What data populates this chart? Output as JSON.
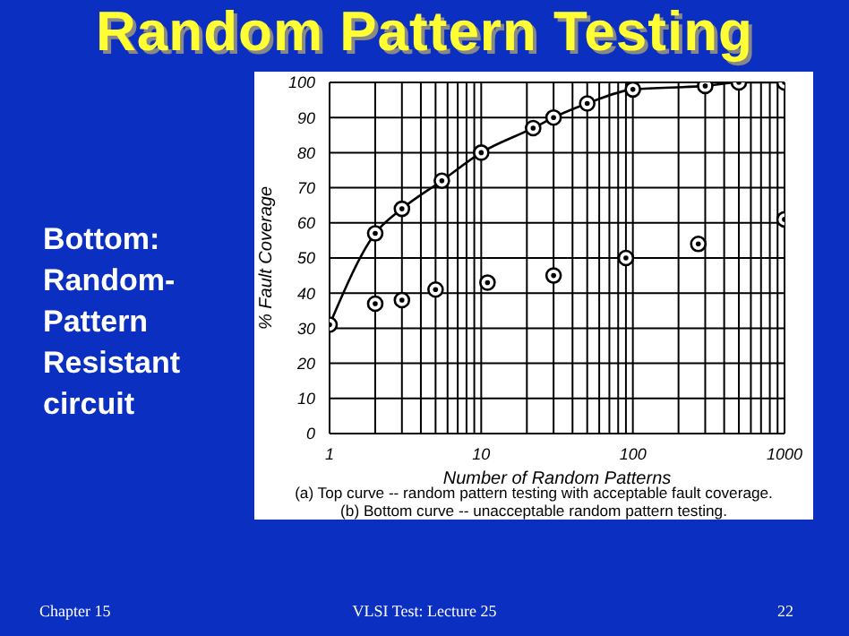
{
  "chart_data": {
    "type": "scatter",
    "title": "Random Pattern Testing",
    "xlabel": "Number of Random Patterns",
    "ylabel": "% Fault Coverage",
    "annotations": [
      "Bottom: Random-Pattern Resistant circuit",
      "(a) Top curve -- random pattern testing with acceptable fault coverage.",
      "(b) Bottom curve -- unacceptable random pattern testing.",
      "Chapter 15",
      "VLSI Test: Lecture 25",
      "22"
    ],
    "series": [
      {
        "type": "line",
        "color": "#000000",
        "x": [
          1,
          2,
          3,
          5.5,
          10,
          22,
          30,
          50,
          100,
          300,
          500,
          1000
        ],
        "values": [
          31,
          57,
          64,
          72,
          80,
          87,
          90,
          94,
          98,
          99,
          100,
          100
        ]
      },
      {
        "color": "#000000",
        "x": [
          2,
          3,
          5,
          11,
          30,
          90,
          270,
          1000
        ],
        "values": [
          37,
          38,
          41,
          43,
          45,
          50,
          54,
          61
        ]
      }
    ],
    "log": "x",
    "xlim": [
      1,
      1000
    ],
    "ylim": [
      0,
      100
    ],
    "xticks": [
      1,
      {
        "value": 2,
        "label": null
      },
      {
        "value": 3,
        "label": null
      },
      {
        "value": 4,
        "label": null
      },
      {
        "value": 5,
        "label": null
      },
      {
        "value": 6,
        "label": null
      },
      {
        "value": 7,
        "label": null
      },
      {
        "value": 8,
        "label": null
      },
      {
        "value": 9,
        "label": null
      },
      10,
      {
        "value": 20,
        "label": null
      },
      {
        "value": 30,
        "label": null
      },
      {
        "value": 40,
        "label": null
      },
      {
        "value": 50,
        "label": null
      },
      {
        "value": 60,
        "label": null
      },
      {
        "value": 70,
        "label": null
      },
      {
        "value": 80,
        "label": null
      },
      {
        "value": 90,
        "label": null
      },
      100,
      {
        "value": 200,
        "label": null
      },
      {
        "value": 300,
        "label": null
      },
      {
        "value": 400,
        "label": null
      },
      {
        "value": 500,
        "label": null
      },
      {
        "value": 600,
        "label": null
      },
      {
        "value": 700,
        "label": null
      },
      {
        "value": 800,
        "label": null
      },
      {
        "value": 900,
        "label": null
      },
      1000
    ],
    "yticks": [
      0,
      10,
      20,
      30,
      40,
      50,
      60,
      70,
      80,
      90,
      100
    ],
    "grid": true,
    "marker": "circle",
    "line_style": "solid"
  }
}
